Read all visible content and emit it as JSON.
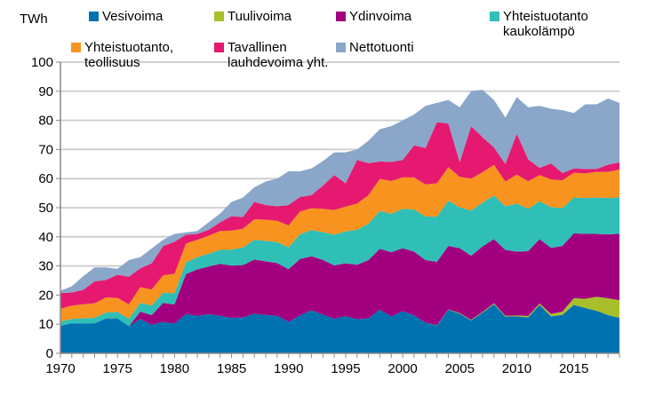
{
  "chart_data": {
    "type": "area",
    "stacked": true,
    "ylabel": "TWh",
    "ylim": [
      0,
      100
    ],
    "yticks": [
      0,
      10,
      20,
      30,
      40,
      50,
      60,
      70,
      80,
      90,
      100
    ],
    "xticks": [
      1970,
      1975,
      1980,
      1985,
      1990,
      1995,
      2000,
      2005,
      2010,
      2015
    ],
    "grid": true,
    "legend_position": "top",
    "x": [
      1970,
      1971,
      1972,
      1973,
      1974,
      1975,
      1976,
      1977,
      1978,
      1979,
      1980,
      1981,
      1982,
      1983,
      1984,
      1985,
      1986,
      1987,
      1988,
      1989,
      1990,
      1991,
      1992,
      1993,
      1994,
      1995,
      1996,
      1997,
      1998,
      1999,
      2000,
      2001,
      2002,
      2003,
      2004,
      2005,
      2006,
      2007,
      2008,
      2009,
      2010,
      2011,
      2012,
      2013,
      2014,
      2015,
      2016,
      2017,
      2018,
      2019
    ],
    "series": [
      {
        "name": "Vesivoima",
        "color": "#0072b0",
        "values": [
          9.4,
          10.3,
          10.3,
          10.3,
          12.0,
          12.0,
          9.3,
          11.8,
          9.8,
          10.8,
          10.2,
          13.5,
          12.9,
          13.4,
          12.9,
          12.1,
          12.3,
          13.6,
          13.2,
          12.9,
          10.8,
          13.0,
          14.8,
          13.3,
          11.8,
          12.8,
          11.7,
          12.0,
          15.0,
          12.6,
          14.5,
          13.0,
          10.6,
          9.5,
          15.0,
          13.6,
          11.3,
          14.0,
          16.9,
          12.6,
          12.7,
          12.3,
          16.6,
          12.7,
          13.2,
          16.6,
          15.6,
          14.6,
          13.1,
          12.2
        ]
      },
      {
        "name": "Tuulivoima",
        "color": "#a8bf2b",
        "values": [
          0,
          0,
          0,
          0,
          0,
          0,
          0,
          0,
          0,
          0,
          0,
          0,
          0,
          0,
          0,
          0,
          0,
          0,
          0,
          0,
          0,
          0,
          0,
          0,
          0,
          0,
          0,
          0,
          0,
          0,
          0,
          0,
          0,
          0.1,
          0.1,
          0.2,
          0.2,
          0.2,
          0.3,
          0.3,
          0.3,
          0.5,
          0.5,
          0.8,
          1.1,
          2.3,
          3.1,
          4.8,
          5.8,
          6.0
        ]
      },
      {
        "name": "Ydinvoima",
        "color": "#a2007f",
        "values": [
          0,
          0,
          0,
          0,
          0,
          0,
          0,
          2.5,
          3.3,
          6.5,
          6.6,
          13.7,
          15.9,
          16.4,
          17.8,
          18.0,
          18.0,
          18.6,
          18.4,
          18.1,
          18.1,
          19.4,
          18.5,
          18.8,
          18.4,
          18.1,
          18.7,
          20.0,
          20.9,
          22.1,
          21.6,
          21.9,
          21.4,
          21.8,
          21.8,
          22.3,
          22.0,
          22.5,
          22.0,
          22.6,
          21.9,
          22.3,
          22.1,
          22.7,
          22.6,
          22.3,
          22.3,
          21.6,
          21.9,
          22.9
        ]
      },
      {
        "name": "Yhteistuotanto kaukolämpö",
        "color": "#2fbfb7",
        "values": [
          1.5,
          1.5,
          1.7,
          1.9,
          2.0,
          2.2,
          2.5,
          3.0,
          3.3,
          3.5,
          3.8,
          4.0,
          4.2,
          4.4,
          4.8,
          5.5,
          6.0,
          6.8,
          7.0,
          7.2,
          7.5,
          8.5,
          9.0,
          9.5,
          10.5,
          11.0,
          12.0,
          12.5,
          13.0,
          13.2,
          13.5,
          14.5,
          15.0,
          15.5,
          15.5,
          14.0,
          15.5,
          15.0,
          15.0,
          15.0,
          16.5,
          14.5,
          13.0,
          14.0,
          13.0,
          12.3,
          12.3,
          12.5,
          12.5,
          12.5
        ]
      },
      {
        "name": "Yhteistuotanto, teollisuus",
        "color": "#f7931e",
        "values": [
          4.4,
          4.6,
          4.8,
          5.0,
          5.2,
          4.8,
          5.0,
          5.4,
          5.5,
          6.0,
          6.7,
          6.5,
          6.0,
          6.2,
          6.5,
          6.5,
          6.5,
          7.0,
          7.3,
          7.3,
          7.5,
          7.8,
          7.5,
          8.0,
          8.5,
          8.5,
          9.0,
          9.8,
          11.0,
          11.3,
          10.8,
          11.0,
          11.0,
          11.5,
          11.5,
          10.5,
          11.0,
          10.5,
          10.5,
          8.5,
          10.0,
          9.5,
          9.0,
          9.5,
          9.5,
          8.5,
          8.5,
          8.8,
          9.0,
          9.5
        ]
      },
      {
        "name": "Tavallinen lauhdevoima yht.",
        "color": "#e5196f",
        "values": [
          5.4,
          4.5,
          5.0,
          7.5,
          6.0,
          8.0,
          9.5,
          6.5,
          9.0,
          10.0,
          11.0,
          3.0,
          2.0,
          2.0,
          3.0,
          5.0,
          4.0,
          6.0,
          5.0,
          5.0,
          7.0,
          5.0,
          4.5,
          8.0,
          12.0,
          8.0,
          15.0,
          11.0,
          6.0,
          6.5,
          6.0,
          11.0,
          12.5,
          21.0,
          15.0,
          5.0,
          18.0,
          12.0,
          6.0,
          6.0,
          14.0,
          7.5,
          2.5,
          5.5,
          2.5,
          1.5,
          1.5,
          1.0,
          2.5,
          2.5
        ]
      },
      {
        "name": "Nettotuonti",
        "color": "#8aa6c9",
        "values": [
          0.8,
          2.1,
          4.7,
          4.8,
          4.3,
          2.0,
          5.7,
          3.8,
          5.1,
          2.2,
          2.7,
          0.8,
          1.0,
          2.6,
          3.0,
          4.9,
          6.7,
          5.0,
          8.1,
          9.5,
          11.6,
          8.8,
          9.2,
          8.4,
          7.8,
          10.6,
          3.6,
          7.7,
          11.1,
          12.3,
          13.6,
          10.6,
          14.5,
          6.6,
          8.1,
          18.9,
          12.0,
          16.3,
          16.3,
          16.0,
          12.6,
          17.9,
          21.3,
          18.8,
          21.6,
          19.0,
          22.2,
          22.2,
          22.7,
          20.4
        ]
      }
    ]
  },
  "legend": {
    "vesivoima": "Vesivoima",
    "tuulivoima": "Tuulivoima",
    "ydinvoima": "Ydinvoima",
    "kaukolampo_1": "Yhteistuotanto",
    "kaukolampo_2": "kaukolämpö",
    "teollisuus_1": "Yhteistuotanto,",
    "teollisuus_2": "teollisuus",
    "lauhde_1": "Tavallinen",
    "lauhde_2": "lauhdevoima yht.",
    "tuonti": "Nettotuonti"
  }
}
